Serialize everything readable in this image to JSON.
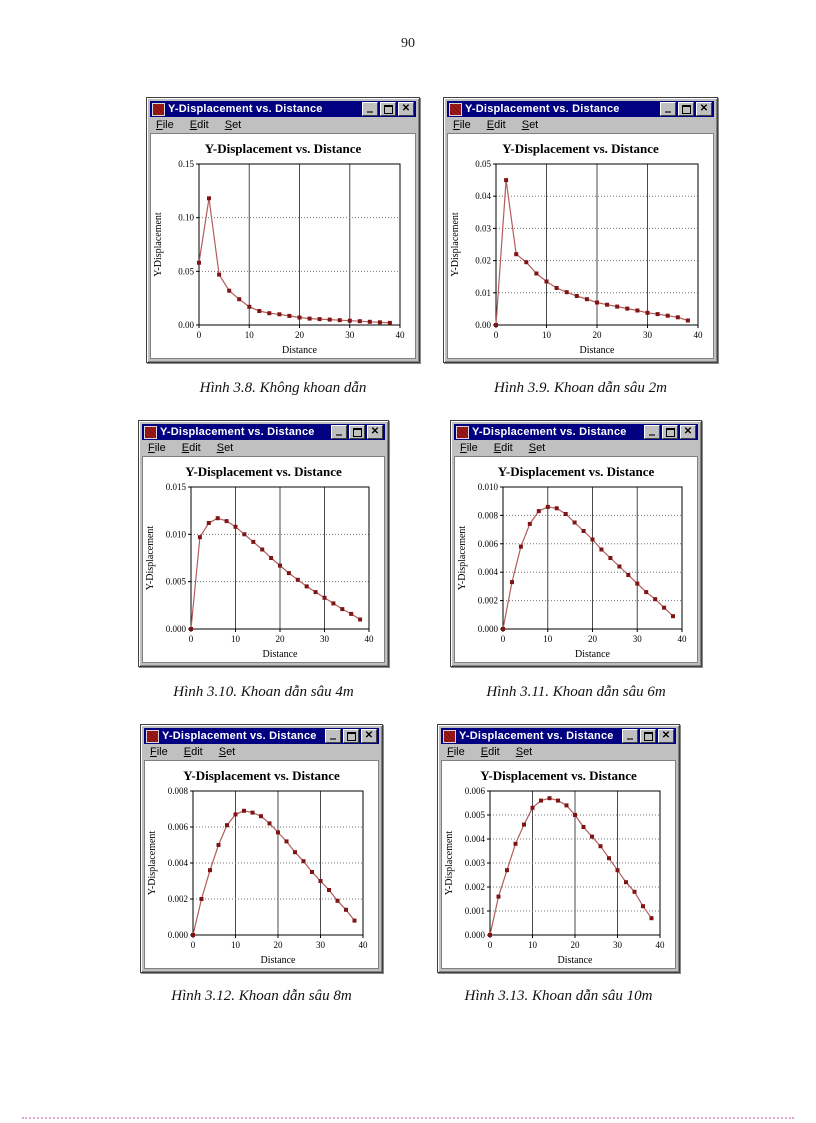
{
  "page": {
    "number": "90"
  },
  "window_chrome": {
    "title": "Y-Displacement vs. Distance",
    "menu": [
      "File",
      "Edit",
      "Set"
    ]
  },
  "colors": {
    "titlebar": "#000080",
    "titlebar_text": "#ffffff",
    "chrome_gray": "#c0c0c0",
    "line": "#b25c5c",
    "marker": "#7f1414",
    "grid_vertical": "#4a4a4a",
    "grid_horizontal": "#777777",
    "axis": "#000000",
    "caption_rule_pink": "#e2a6d2"
  },
  "chart_data": [
    {
      "type": "line",
      "title": "Y-Displacement vs. Distance",
      "xlabel": "Distance",
      "ylabel": "Y-Displacement",
      "caption": "Hình 3.8. Không khoan dẫn",
      "x": [
        0,
        2,
        4,
        6,
        8,
        10,
        12,
        14,
        16,
        18,
        20,
        22,
        24,
        26,
        28,
        30,
        32,
        34,
        36,
        38
      ],
      "y": [
        0.058,
        0.118,
        0.047,
        0.032,
        0.024,
        0.017,
        0.013,
        0.011,
        0.01,
        0.0085,
        0.007,
        0.006,
        0.0055,
        0.005,
        0.0045,
        0.004,
        0.0035,
        0.003,
        0.0025,
        0.002
      ],
      "xlim": [
        0,
        40
      ],
      "ylim": [
        0,
        0.15
      ],
      "xticks": [
        0,
        10,
        20,
        30,
        40
      ],
      "xtick_labels": [
        "0",
        "10",
        "20",
        "30",
        "40"
      ],
      "yticks": [
        0,
        0.05,
        0.1,
        0.15
      ],
      "ytick_labels": [
        "0.00",
        "0.05",
        "0.10",
        "0.15"
      ],
      "grid": true,
      "legend": false
    },
    {
      "type": "line",
      "title": "Y-Displacement vs. Distance",
      "xlabel": "Distance",
      "ylabel": "Y-Displacement",
      "caption": "Hình 3.9. Khoan dẫn sâu 2m",
      "x": [
        0,
        2,
        4,
        6,
        8,
        10,
        12,
        14,
        16,
        18,
        20,
        22,
        24,
        26,
        28,
        30,
        32,
        34,
        36,
        38
      ],
      "y": [
        0.0,
        0.045,
        0.022,
        0.0195,
        0.016,
        0.0135,
        0.0115,
        0.0102,
        0.009,
        0.008,
        0.007,
        0.0063,
        0.0057,
        0.0051,
        0.0045,
        0.0038,
        0.0034,
        0.0029,
        0.0024,
        0.0014
      ],
      "xlim": [
        0,
        40
      ],
      "ylim": [
        0,
        0.05
      ],
      "xticks": [
        0,
        10,
        20,
        30,
        40
      ],
      "xtick_labels": [
        "0",
        "10",
        "20",
        "30",
        "40"
      ],
      "yticks": [
        0,
        0.01,
        0.02,
        0.03,
        0.04,
        0.05
      ],
      "ytick_labels": [
        "0.00",
        "0.01",
        "0.02",
        "0.03",
        "0.04",
        "0.05"
      ],
      "grid": true,
      "legend": false
    },
    {
      "type": "line",
      "title": "Y-Displacement vs. Distance",
      "xlabel": "Distance",
      "ylabel": "Y-Displacement",
      "caption": "Hình 3.10. Khoan dẫn sâu 4m",
      "x": [
        0,
        2,
        4,
        6,
        8,
        10,
        12,
        14,
        16,
        18,
        20,
        22,
        24,
        26,
        28,
        30,
        32,
        34,
        36,
        38
      ],
      "y": [
        0.0,
        0.0097,
        0.0112,
        0.0117,
        0.0114,
        0.0108,
        0.01,
        0.0092,
        0.0084,
        0.0075,
        0.0067,
        0.0059,
        0.0052,
        0.0045,
        0.0039,
        0.0033,
        0.0027,
        0.0021,
        0.0016,
        0.001
      ],
      "xlim": [
        0,
        40
      ],
      "ylim": [
        0,
        0.015
      ],
      "xticks": [
        0,
        10,
        20,
        30,
        40
      ],
      "xtick_labels": [
        "0",
        "10",
        "20",
        "30",
        "40"
      ],
      "yticks": [
        0,
        0.005,
        0.01,
        0.015
      ],
      "ytick_labels": [
        "0.000",
        "0.005",
        "0.010",
        "0.015"
      ],
      "grid": true,
      "legend": false
    },
    {
      "type": "line",
      "title": "Y-Displacement vs. Distance",
      "xlabel": "Distance",
      "ylabel": "Y-Displacement",
      "caption": "Hình 3.11. Khoan dẫn sâu 6m",
      "x": [
        0,
        2,
        4,
        6,
        8,
        10,
        12,
        14,
        16,
        18,
        20,
        22,
        24,
        26,
        28,
        30,
        32,
        34,
        36,
        38
      ],
      "y": [
        0.0,
        0.0033,
        0.0058,
        0.0074,
        0.0083,
        0.0086,
        0.0085,
        0.0081,
        0.0075,
        0.0069,
        0.0063,
        0.0056,
        0.005,
        0.0044,
        0.0038,
        0.0032,
        0.0026,
        0.0021,
        0.0015,
        0.0009
      ],
      "xlim": [
        0,
        40
      ],
      "ylim": [
        0,
        0.01
      ],
      "xticks": [
        0,
        10,
        20,
        30,
        40
      ],
      "xtick_labels": [
        "0",
        "10",
        "20",
        "30",
        "40"
      ],
      "yticks": [
        0,
        0.002,
        0.004,
        0.006,
        0.008,
        0.01
      ],
      "ytick_labels": [
        "0.000",
        "0.002",
        "0.004",
        "0.006",
        "0.008",
        "0.010"
      ],
      "grid": true,
      "legend": false
    },
    {
      "type": "line",
      "title": "Y-Displacement vs. Distance",
      "xlabel": "Distance",
      "ylabel": "Y-Displacement",
      "caption": "Hình 3.12. Khoan dẫn sâu 8m",
      "x": [
        0,
        2,
        4,
        6,
        8,
        10,
        12,
        14,
        16,
        18,
        20,
        22,
        24,
        26,
        28,
        30,
        32,
        34,
        36,
        38
      ],
      "y": [
        0.0,
        0.002,
        0.0036,
        0.005,
        0.0061,
        0.0067,
        0.0069,
        0.0068,
        0.0066,
        0.0062,
        0.0057,
        0.0052,
        0.0046,
        0.0041,
        0.0035,
        0.003,
        0.0025,
        0.0019,
        0.0014,
        0.0008
      ],
      "xlim": [
        0,
        40
      ],
      "ylim": [
        0,
        0.008
      ],
      "xticks": [
        0,
        10,
        20,
        30,
        40
      ],
      "xtick_labels": [
        "0",
        "10",
        "20",
        "30",
        "40"
      ],
      "yticks": [
        0,
        0.002,
        0.004,
        0.006,
        0.008
      ],
      "ytick_labels": [
        "0.000",
        "0.002",
        "0.004",
        "0.006",
        "0.008"
      ],
      "grid": true,
      "legend": false
    },
    {
      "type": "line",
      "title": "Y-Displacement vs. Distance",
      "xlabel": "Distance",
      "ylabel": "Y-Displacement",
      "caption": "Hình 3.13. Khoan dẫn sâu 10m",
      "x": [
        0,
        2,
        4,
        6,
        8,
        10,
        12,
        14,
        16,
        18,
        20,
        22,
        24,
        26,
        28,
        30,
        32,
        34,
        36,
        38
      ],
      "y": [
        0.0,
        0.0016,
        0.0027,
        0.0038,
        0.0046,
        0.0053,
        0.0056,
        0.0057,
        0.0056,
        0.0054,
        0.005,
        0.0045,
        0.0041,
        0.0037,
        0.0032,
        0.0027,
        0.0022,
        0.0018,
        0.0012,
        0.0007
      ],
      "xlim": [
        0,
        40
      ],
      "ylim": [
        0,
        0.006
      ],
      "xticks": [
        0,
        10,
        20,
        30,
        40
      ],
      "xtick_labels": [
        "0",
        "10",
        "20",
        "30",
        "40"
      ],
      "yticks": [
        0,
        0.001,
        0.002,
        0.003,
        0.004,
        0.005,
        0.006
      ],
      "ytick_labels": [
        "0.000",
        "0.001",
        "0.002",
        "0.003",
        "0.004",
        "0.005",
        "0.006"
      ],
      "grid": true,
      "legend": false
    }
  ]
}
